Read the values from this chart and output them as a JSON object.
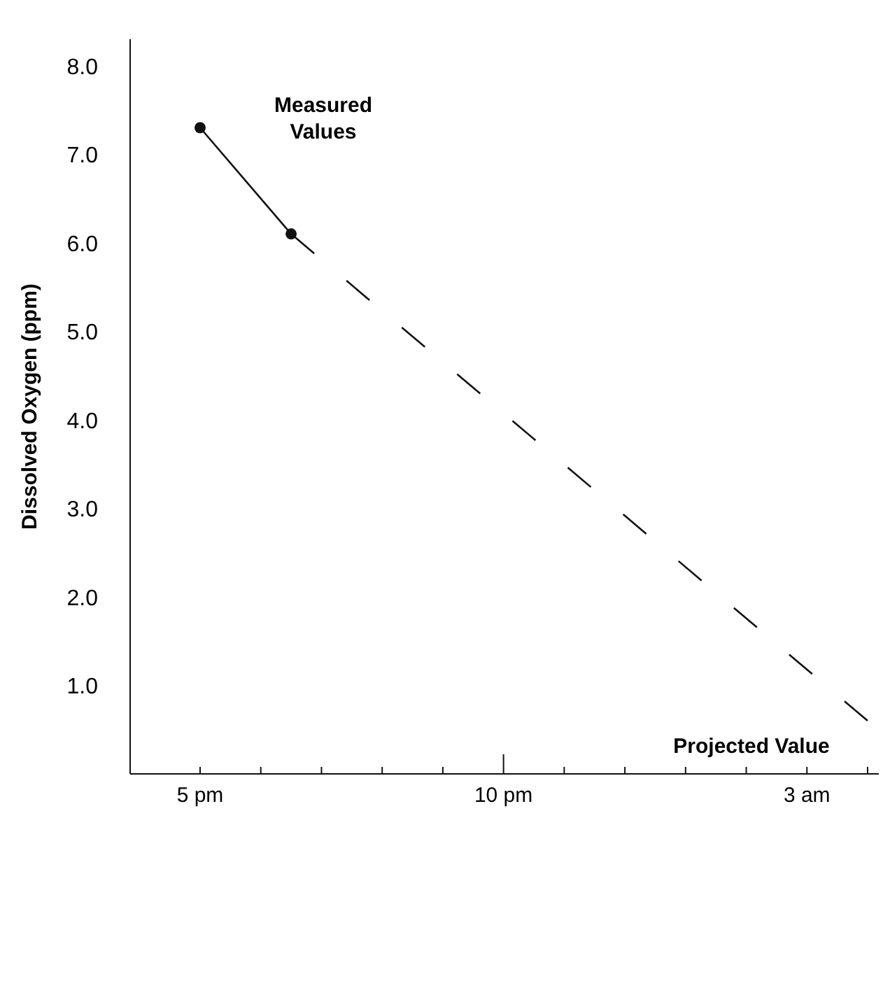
{
  "chart_data": {
    "type": "line",
    "ylabel": "Dissolved Oxygen (ppm)",
    "categories": [
      "5 pm",
      null,
      null,
      null,
      null,
      null,
      null,
      null,
      null,
      null,
      "10 pm",
      null,
      null,
      null,
      null,
      null,
      null,
      null,
      null,
      null,
      "3 am",
      null,
      null
    ],
    "ylim": [
      0,
      8.3
    ],
    "yticks": [
      {
        "value": 1,
        "label": "1.0"
      },
      {
        "value": 2,
        "label": "2.0"
      },
      {
        "value": 3,
        "label": "3.0"
      },
      {
        "value": 4,
        "label": "4.0"
      },
      {
        "value": 5,
        "label": "5.0"
      },
      {
        "value": 6,
        "label": "6.0"
      },
      {
        "value": 7,
        "label": "7.0"
      },
      {
        "value": 8,
        "label": "8.0"
      }
    ],
    "series": [
      {
        "color": "#111111",
        "values": [
          7.3,
          null,
          null,
          6.1,
          null,
          null,
          null,
          null,
          null,
          null,
          null,
          null,
          null,
          null,
          null,
          null,
          null,
          null,
          null,
          null,
          null,
          null,
          null
        ],
        "marker": "circle",
        "line_style": "solid"
      },
      {
        "color": "#111111",
        "values": [
          null,
          null,
          null,
          6.1,
          null,
          null,
          null,
          null,
          null,
          null,
          null,
          null,
          null,
          null,
          null,
          null,
          null,
          null,
          null,
          null,
          null,
          null,
          0.6
        ],
        "marker": "none",
        "line_style": "dashed"
      }
    ],
    "annotations": [
      "Measured Values",
      "Projected Value"
    ],
    "grid": false
  }
}
